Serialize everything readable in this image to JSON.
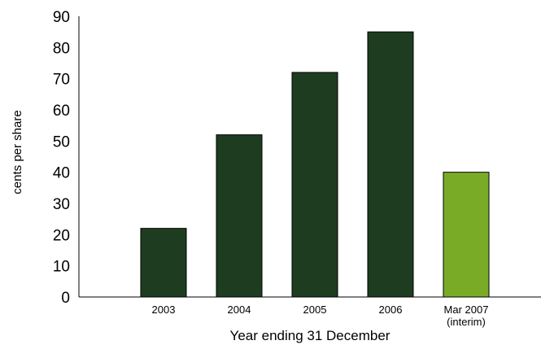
{
  "chart_data": {
    "type": "bar",
    "categories": [
      "2003",
      "2004",
      "2005",
      "2006",
      "Mar 2007"
    ],
    "category_sublabels": [
      "",
      "",
      "",
      "",
      "(interim)"
    ],
    "values": [
      22,
      52,
      72,
      85,
      40
    ],
    "bar_colors": [
      "#1e3d20",
      "#1e3d20",
      "#1e3d20",
      "#1e3d20",
      "#7aab27"
    ],
    "xlabel": "Year ending 31 December",
    "ylabel": "cents per share",
    "ylim": [
      0,
      90
    ],
    "yticks": [
      0,
      10,
      20,
      30,
      40,
      50,
      60,
      70,
      80,
      90
    ],
    "grid": false,
    "legend": "none"
  }
}
